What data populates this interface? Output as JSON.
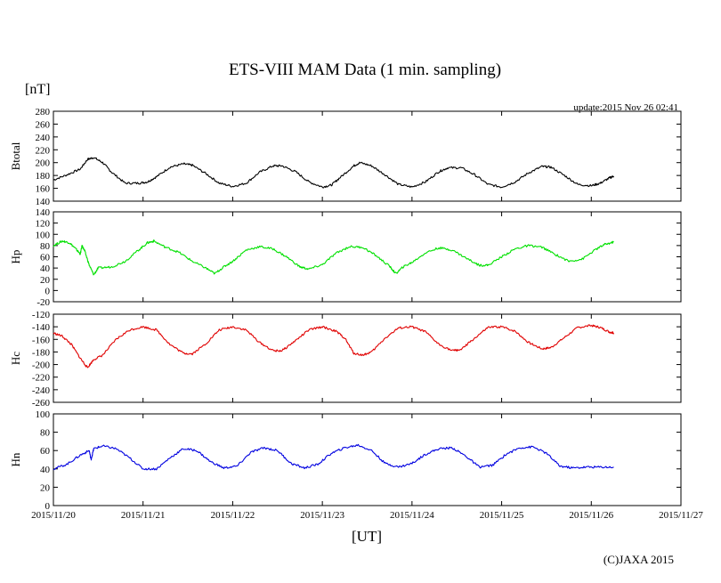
{
  "chart_data": {
    "type": "line",
    "title": "ETS-VIII MAM Data (1 min. sampling)",
    "unit_label": "[nT]",
    "update_label": "update:2015 Nov 26 02:41",
    "xlabel": "[UT]",
    "copyright": "(C)JAXA 2015",
    "x_ticks": [
      "2015/11/20",
      "2015/11/21",
      "2015/11/22",
      "2015/11/23",
      "2015/11/24",
      "2015/11/25",
      "2015/11/26",
      "2015/11/27"
    ],
    "xlim_days": [
      0,
      7
    ],
    "grid": false,
    "panels": [
      {
        "name": "Btotal",
        "color": "#000000",
        "ylim": [
          140,
          280
        ],
        "yticks": [
          140,
          160,
          180,
          200,
          220,
          240,
          260,
          280
        ],
        "points": [
          [
            0,
            173
          ],
          [
            0.15,
            181
          ],
          [
            0.3,
            190
          ],
          [
            0.38,
            205
          ],
          [
            0.45,
            208
          ],
          [
            0.55,
            200
          ],
          [
            0.65,
            185
          ],
          [
            0.8,
            168
          ],
          [
            0.95,
            168
          ],
          [
            1.05,
            170
          ],
          [
            1.15,
            178
          ],
          [
            1.3,
            193
          ],
          [
            1.45,
            198
          ],
          [
            1.55,
            196
          ],
          [
            1.7,
            183
          ],
          [
            1.85,
            168
          ],
          [
            2.0,
            163
          ],
          [
            2.15,
            168
          ],
          [
            2.3,
            185
          ],
          [
            2.45,
            195
          ],
          [
            2.55,
            195
          ],
          [
            2.7,
            186
          ],
          [
            2.85,
            170
          ],
          [
            3.0,
            162
          ],
          [
            3.1,
            165
          ],
          [
            3.2,
            177
          ],
          [
            3.35,
            195
          ],
          [
            3.42,
            200
          ],
          [
            3.55,
            195
          ],
          [
            3.7,
            181
          ],
          [
            3.85,
            166
          ],
          [
            4.0,
            162
          ],
          [
            4.15,
            170
          ],
          [
            4.3,
            186
          ],
          [
            4.4,
            192
          ],
          [
            4.55,
            192
          ],
          [
            4.7,
            181
          ],
          [
            4.85,
            166
          ],
          [
            5.0,
            162
          ],
          [
            5.15,
            170
          ],
          [
            5.3,
            184
          ],
          [
            5.45,
            194
          ],
          [
            5.55,
            193
          ],
          [
            5.7,
            180
          ],
          [
            5.85,
            166
          ],
          [
            6.0,
            164
          ],
          [
            6.1,
            168
          ],
          [
            6.2,
            176
          ],
          [
            6.25,
            179
          ]
        ]
      },
      {
        "name": "Hp",
        "color": "#00e000",
        "ylim": [
          -20,
          140
        ],
        "yticks": [
          -20,
          0,
          20,
          40,
          60,
          80,
          100,
          120,
          140
        ],
        "points": [
          [
            0,
            80
          ],
          [
            0.1,
            88
          ],
          [
            0.18,
            85
          ],
          [
            0.25,
            74
          ],
          [
            0.3,
            65
          ],
          [
            0.32,
            80
          ],
          [
            0.35,
            70
          ],
          [
            0.4,
            45
          ],
          [
            0.45,
            28
          ],
          [
            0.5,
            40
          ],
          [
            0.65,
            42
          ],
          [
            0.8,
            52
          ],
          [
            0.95,
            72
          ],
          [
            1.05,
            85
          ],
          [
            1.12,
            88
          ],
          [
            1.25,
            77
          ],
          [
            1.4,
            68
          ],
          [
            1.55,
            52
          ],
          [
            1.7,
            40
          ],
          [
            1.8,
            30
          ],
          [
            1.9,
            42
          ],
          [
            2.0,
            52
          ],
          [
            2.15,
            72
          ],
          [
            2.3,
            78
          ],
          [
            2.45,
            74
          ],
          [
            2.6,
            60
          ],
          [
            2.75,
            42
          ],
          [
            2.85,
            38
          ],
          [
            3.0,
            46
          ],
          [
            3.15,
            66
          ],
          [
            3.3,
            78
          ],
          [
            3.45,
            77
          ],
          [
            3.6,
            62
          ],
          [
            3.75,
            43
          ],
          [
            3.82,
            30
          ],
          [
            3.9,
            42
          ],
          [
            4.0,
            50
          ],
          [
            4.15,
            67
          ],
          [
            4.3,
            76
          ],
          [
            4.45,
            72
          ],
          [
            4.6,
            58
          ],
          [
            4.75,
            45
          ],
          [
            4.85,
            45
          ],
          [
            5.0,
            60
          ],
          [
            5.15,
            74
          ],
          [
            5.3,
            80
          ],
          [
            5.45,
            77
          ],
          [
            5.6,
            64
          ],
          [
            5.75,
            52
          ],
          [
            5.9,
            56
          ],
          [
            6.05,
            73
          ],
          [
            6.15,
            82
          ],
          [
            6.25,
            86
          ]
        ]
      },
      {
        "name": "Hc",
        "color": "#e00000",
        "ylim": [
          -260,
          -120
        ],
        "yticks": [
          -260,
          -240,
          -220,
          -200,
          -180,
          -160,
          -140,
          -120
        ],
        "points": [
          [
            0,
            -150
          ],
          [
            0.1,
            -155
          ],
          [
            0.2,
            -168
          ],
          [
            0.3,
            -190
          ],
          [
            0.38,
            -205
          ],
          [
            0.45,
            -192
          ],
          [
            0.55,
            -185
          ],
          [
            0.7,
            -160
          ],
          [
            0.85,
            -145
          ],
          [
            1.0,
            -140
          ],
          [
            1.15,
            -145
          ],
          [
            1.3,
            -168
          ],
          [
            1.45,
            -182
          ],
          [
            1.55,
            -183
          ],
          [
            1.7,
            -167
          ],
          [
            1.85,
            -145
          ],
          [
            2.0,
            -140
          ],
          [
            2.15,
            -145
          ],
          [
            2.3,
            -165
          ],
          [
            2.45,
            -178
          ],
          [
            2.55,
            -178
          ],
          [
            2.7,
            -162
          ],
          [
            2.85,
            -145
          ],
          [
            3.0,
            -140
          ],
          [
            3.15,
            -147
          ],
          [
            3.25,
            -158
          ],
          [
            3.35,
            -182
          ],
          [
            3.45,
            -185
          ],
          [
            3.55,
            -180
          ],
          [
            3.7,
            -158
          ],
          [
            3.85,
            -142
          ],
          [
            4.0,
            -140
          ],
          [
            4.15,
            -148
          ],
          [
            4.3,
            -168
          ],
          [
            4.45,
            -178
          ],
          [
            4.55,
            -176
          ],
          [
            4.7,
            -158
          ],
          [
            4.85,
            -141
          ],
          [
            5.0,
            -140
          ],
          [
            5.15,
            -147
          ],
          [
            5.3,
            -165
          ],
          [
            5.45,
            -175
          ],
          [
            5.55,
            -173
          ],
          [
            5.7,
            -157
          ],
          [
            5.85,
            -141
          ],
          [
            6.0,
            -138
          ],
          [
            6.1,
            -141
          ],
          [
            6.2,
            -148
          ],
          [
            6.25,
            -150
          ]
        ]
      },
      {
        "name": "Hn",
        "color": "#0000e0",
        "ylim": [
          0,
          100
        ],
        "yticks": [
          0,
          20,
          40,
          60,
          80,
          100
        ],
        "points": [
          [
            0,
            40
          ],
          [
            0.15,
            45
          ],
          [
            0.3,
            55
          ],
          [
            0.4,
            60
          ],
          [
            0.42,
            50
          ],
          [
            0.45,
            62
          ],
          [
            0.55,
            65
          ],
          [
            0.7,
            62
          ],
          [
            0.85,
            52
          ],
          [
            1.0,
            40
          ],
          [
            1.15,
            40
          ],
          [
            1.3,
            52
          ],
          [
            1.45,
            62
          ],
          [
            1.6,
            60
          ],
          [
            1.75,
            48
          ],
          [
            1.9,
            41
          ],
          [
            2.05,
            43
          ],
          [
            2.2,
            58
          ],
          [
            2.35,
            63
          ],
          [
            2.5,
            60
          ],
          [
            2.65,
            46
          ],
          [
            2.8,
            41
          ],
          [
            2.95,
            45
          ],
          [
            3.1,
            57
          ],
          [
            3.25,
            63
          ],
          [
            3.4,
            66
          ],
          [
            3.55,
            60
          ],
          [
            3.7,
            46
          ],
          [
            3.85,
            42
          ],
          [
            4.0,
            46
          ],
          [
            4.15,
            56
          ],
          [
            4.3,
            62
          ],
          [
            4.45,
            63
          ],
          [
            4.6,
            54
          ],
          [
            4.75,
            42
          ],
          [
            4.9,
            44
          ],
          [
            5.05,
            56
          ],
          [
            5.2,
            63
          ],
          [
            5.35,
            64
          ],
          [
            5.5,
            57
          ],
          [
            5.65,
            43
          ],
          [
            5.8,
            41
          ],
          [
            5.95,
            42
          ],
          [
            6.1,
            42
          ],
          [
            6.25,
            42
          ]
        ]
      }
    ]
  }
}
